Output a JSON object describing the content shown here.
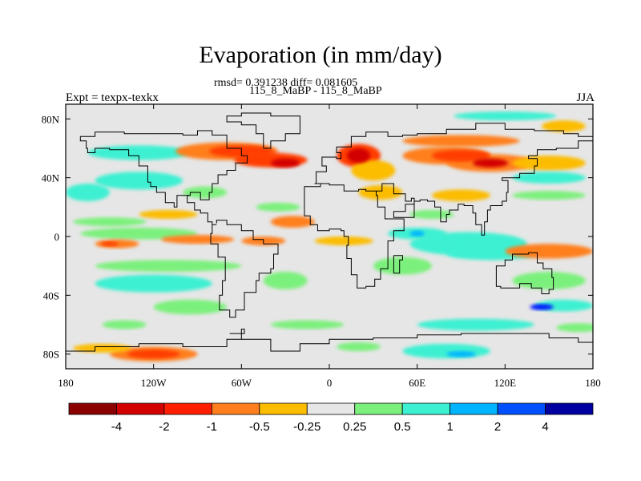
{
  "header": {
    "title": "Evaporation (in mm/day)",
    "stats": "rmsd= 0.391238 diff= 0.081605",
    "case": "115_8_MaBP - 115_8_MaBP",
    "expt": "Expt = texpx-texkx",
    "season": "JJA"
  },
  "map": {
    "lon_range": [
      -180,
      180
    ],
    "lat_range": [
      -90,
      90
    ],
    "background_color": "#e6e6e6",
    "lon_ticks": [
      {
        "value": -180,
        "label": "180"
      },
      {
        "value": -120,
        "label": "120W"
      },
      {
        "value": -60,
        "label": "60W"
      },
      {
        "value": 0,
        "label": "0"
      },
      {
        "value": 60,
        "label": "60E"
      },
      {
        "value": 120,
        "label": "120E"
      },
      {
        "value": 180,
        "label": "180"
      }
    ],
    "lat_ticks": [
      {
        "value": 80,
        "label": "80N"
      },
      {
        "value": 40,
        "label": "40N"
      },
      {
        "value": 0,
        "label": "0"
      },
      {
        "value": -40,
        "label": "40S"
      },
      {
        "value": -80,
        "label": "80S"
      }
    ],
    "fields": [
      {
        "lon": -130,
        "lat": 57,
        "rlon": 35,
        "rlat": 5,
        "color": "#3cf0d2"
      },
      {
        "lon": -165,
        "lat": 30,
        "rlon": 15,
        "rlat": 6,
        "color": "#3cf0d2"
      },
      {
        "lon": -130,
        "lat": 38,
        "rlon": 30,
        "rlat": 6,
        "color": "#3cf0d2"
      },
      {
        "lon": -110,
        "lat": 15,
        "rlon": 20,
        "rlat": 3,
        "color": "#fcbc00"
      },
      {
        "lon": -150,
        "lat": 10,
        "rlon": 25,
        "rlat": 3,
        "color": "#7cf07c"
      },
      {
        "lon": -130,
        "lat": 2,
        "rlon": 40,
        "rlat": 4,
        "color": "#7cf07c"
      },
      {
        "lon": -145,
        "lat": -5,
        "rlon": 15,
        "rlat": 3,
        "color": "#ff7f1e"
      },
      {
        "lon": -90,
        "lat": -2,
        "rlon": 25,
        "rlat": 3,
        "color": "#ff7f1e"
      },
      {
        "lon": -110,
        "lat": -20,
        "rlon": 50,
        "rlat": 4,
        "color": "#7cf07c"
      },
      {
        "lon": -120,
        "lat": -32,
        "rlon": 40,
        "rlat": 6,
        "color": "#3cf0d2"
      },
      {
        "lon": -95,
        "lat": -48,
        "rlon": 25,
        "rlat": 5,
        "color": "#7cf07c"
      },
      {
        "lon": -140,
        "lat": -60,
        "rlon": 15,
        "rlat": 3,
        "color": "#7cf07c"
      },
      {
        "lon": -120,
        "lat": -80,
        "rlon": 30,
        "rlat": 5,
        "color": "#ff7f1e"
      },
      {
        "lon": -155,
        "lat": -76,
        "rlon": 20,
        "rlat": 3,
        "color": "#fcbc00"
      },
      {
        "lon": -70,
        "lat": 58,
        "rlon": 35,
        "rlat": 6,
        "color": "#ff7f1e"
      },
      {
        "lon": -40,
        "lat": 52,
        "rlon": 25,
        "rlat": 5,
        "color": "#ff3c00"
      },
      {
        "lon": -85,
        "lat": 30,
        "rlon": 15,
        "rlat": 4,
        "color": "#7cf07c"
      },
      {
        "lon": -35,
        "lat": 20,
        "rlon": 15,
        "rlat": 3,
        "color": "#7cf07c"
      },
      {
        "lon": -25,
        "lat": 10,
        "rlon": 15,
        "rlat": 4,
        "color": "#ff7f1e"
      },
      {
        "lon": -45,
        "lat": -3,
        "rlon": 15,
        "rlat": 3,
        "color": "#ff7f1e"
      },
      {
        "lon": -30,
        "lat": -30,
        "rlon": 15,
        "rlat": 6,
        "color": "#7cf07c"
      },
      {
        "lon": -15,
        "lat": -60,
        "rlon": 25,
        "rlat": 3,
        "color": "#7cf07c"
      },
      {
        "lon": 20,
        "lat": 55,
        "rlon": 15,
        "rlat": 8,
        "color": "#ff3c00"
      },
      {
        "lon": 30,
        "lat": 45,
        "rlon": 15,
        "rlat": 7,
        "color": "#fcbc00"
      },
      {
        "lon": 35,
        "lat": 30,
        "rlon": 15,
        "rlat": 5,
        "color": "#fcbc00"
      },
      {
        "lon": 10,
        "lat": -3,
        "rlon": 20,
        "rlat": 3,
        "color": "#fcbc00"
      },
      {
        "lon": 60,
        "lat": 2,
        "rlon": 20,
        "rlat": 4,
        "color": "#3cf0d2"
      },
      {
        "lon": 50,
        "lat": -20,
        "rlon": 20,
        "rlat": 6,
        "color": "#7cf07c"
      },
      {
        "lon": 80,
        "lat": 55,
        "rlon": 30,
        "rlat": 6,
        "color": "#ff7f1e"
      },
      {
        "lon": 90,
        "lat": 65,
        "rlon": 40,
        "rlat": 4,
        "color": "#ff7f1e"
      },
      {
        "lon": 110,
        "lat": 50,
        "rlon": 30,
        "rlat": 6,
        "color": "#ff7f1e"
      },
      {
        "lon": 160,
        "lat": 75,
        "rlon": 15,
        "rlat": 4,
        "color": "#fcbc00"
      },
      {
        "lon": 150,
        "lat": 50,
        "rlon": 25,
        "rlat": 5,
        "color": "#fcbc00"
      },
      {
        "lon": 120,
        "lat": 82,
        "rlon": 35,
        "rlat": 3,
        "color": "#3cf0d2"
      },
      {
        "lon": 150,
        "lat": 40,
        "rlon": 25,
        "rlat": 4,
        "color": "#3cf0d2"
      },
      {
        "lon": 150,
        "lat": 28,
        "rlon": 25,
        "rlat": 3,
        "color": "#7cf07c"
      },
      {
        "lon": 90,
        "lat": 28,
        "rlon": 20,
        "rlat": 4,
        "color": "#fcbc00"
      },
      {
        "lon": 70,
        "lat": 15,
        "rlon": 15,
        "rlat": 3,
        "color": "#7cf07c"
      },
      {
        "lon": 95,
        "lat": -5,
        "rlon": 40,
        "rlat": 8,
        "color": "#3cf0d2"
      },
      {
        "lon": 110,
        "lat": -12,
        "rlon": 30,
        "rlat": 4,
        "color": "#3cf0d2"
      },
      {
        "lon": 150,
        "lat": -10,
        "rlon": 30,
        "rlat": 5,
        "color": "#ff7f1e"
      },
      {
        "lon": 150,
        "lat": -30,
        "rlon": 25,
        "rlat": 6,
        "color": "#7cf07c"
      },
      {
        "lon": 160,
        "lat": -47,
        "rlon": 20,
        "rlat": 4,
        "color": "#3cf0d2"
      },
      {
        "lon": 170,
        "lat": -62,
        "rlon": 15,
        "rlat": 3,
        "color": "#7cf07c"
      },
      {
        "lon": 100,
        "lat": -60,
        "rlon": 40,
        "rlat": 4,
        "color": "#3cf0d2"
      },
      {
        "lon": 80,
        "lat": -78,
        "rlon": 30,
        "rlat": 5,
        "color": "#3cf0d2"
      },
      {
        "lon": 20,
        "lat": -75,
        "rlon": 15,
        "rlat": 3,
        "color": "#7cf07c"
      }
    ],
    "hotspots": [
      {
        "lon": -120,
        "lat": -80,
        "rlon": 18,
        "rlat": 3,
        "color": "#ff3c00"
      },
      {
        "lon": -60,
        "lat": 58,
        "rlon": 22,
        "rlat": 4,
        "color": "#ff3c00"
      },
      {
        "lon": 20,
        "lat": 55,
        "rlon": 8,
        "rlat": 5,
        "color": "#d20000"
      },
      {
        "lon": 90,
        "lat": 55,
        "rlon": 20,
        "rlat": 4,
        "color": "#ff3c00"
      },
      {
        "lon": 110,
        "lat": 50,
        "rlon": 12,
        "rlat": 3,
        "color": "#d20000"
      },
      {
        "lon": -30,
        "lat": 50,
        "rlon": 10,
        "rlat": 3,
        "color": "#d20000"
      },
      {
        "lon": 145,
        "lat": -48,
        "rlon": 8,
        "rlat": 2,
        "color": "#0014ff"
      },
      {
        "lon": 90,
        "lat": -80,
        "rlon": 10,
        "rlat": 2,
        "color": "#00b4ff"
      },
      {
        "lon": 60,
        "lat": 2,
        "rlon": 5,
        "rlat": 2,
        "color": "#00b4ff"
      },
      {
        "lon": -150,
        "lat": -5,
        "rlon": 6,
        "rlat": 1.5,
        "color": "#ff3c00"
      }
    ],
    "coastlines": [
      [
        [
          -170,
          68
        ],
        [
          -160,
          71
        ],
        [
          -140,
          70
        ],
        [
          -120,
          70
        ],
        [
          -100,
          69
        ],
        [
          -90,
          72
        ],
        [
          -80,
          69
        ],
        [
          -70,
          60
        ],
        [
          -60,
          55
        ],
        [
          -56,
          50
        ],
        [
          -64,
          45
        ],
        [
          -70,
          42
        ],
        [
          -76,
          36
        ],
        [
          -80,
          30
        ],
        [
          -82,
          25
        ],
        [
          -88,
          30
        ],
        [
          -95,
          28
        ],
        [
          -97,
          23
        ],
        [
          -92,
          18
        ],
        [
          -88,
          16
        ],
        [
          -83,
          10
        ],
        [
          -80,
          8
        ],
        [
          -77,
          8
        ],
        [
          -80,
          2
        ],
        [
          -81,
          -5
        ],
        [
          -76,
          -14
        ],
        [
          -71,
          -20
        ],
        [
          -71,
          -30
        ],
        [
          -73,
          -40
        ],
        [
          -75,
          -50
        ],
        [
          -68,
          -55
        ],
        [
          -64,
          -50
        ],
        [
          -58,
          -38
        ],
        [
          -50,
          -30
        ],
        [
          -48,
          -25
        ],
        [
          -40,
          -22
        ],
        [
          -38,
          -12
        ],
        [
          -35,
          -5
        ],
        [
          -45,
          -2
        ],
        [
          -52,
          4
        ],
        [
          -60,
          8
        ],
        [
          -70,
          11
        ],
        [
          -77,
          9
        ]
      ],
      [
        [
          -95,
          28
        ],
        [
          -104,
          20
        ],
        [
          -106,
          23
        ],
        [
          -112,
          30
        ],
        [
          -118,
          34
        ],
        [
          -122,
          37
        ],
        [
          -124,
          42
        ],
        [
          -124,
          48
        ],
        [
          -130,
          55
        ],
        [
          -137,
          59
        ],
        [
          -150,
          60
        ],
        [
          -160,
          57
        ],
        [
          -165,
          60
        ],
        [
          -166,
          65
        ],
        [
          -170,
          68
        ]
      ],
      [
        [
          -10,
          36
        ],
        [
          -9,
          44
        ],
        [
          -2,
          48
        ],
        [
          -5,
          54
        ],
        [
          5,
          53
        ],
        [
          8,
          57
        ],
        [
          5,
          61
        ],
        [
          15,
          68
        ],
        [
          25,
          71
        ],
        [
          40,
          68
        ],
        [
          50,
          69
        ],
        [
          60,
          70
        ],
        [
          80,
          73
        ],
        [
          100,
          77
        ],
        [
          120,
          73
        ],
        [
          140,
          72
        ],
        [
          160,
          70
        ],
        [
          170,
          68
        ],
        [
          180,
          68
        ]
      ],
      [
        [
          -10,
          36
        ],
        [
          -6,
          34
        ],
        [
          -17,
          21
        ],
        [
          -17,
          14
        ],
        [
          -13,
          8
        ],
        [
          -8,
          4
        ],
        [
          0,
          5
        ],
        [
          8,
          4
        ],
        [
          10,
          0
        ],
        [
          13,
          -6
        ],
        [
          12,
          -15
        ],
        [
          15,
          -26
        ],
        [
          19,
          -35
        ],
        [
          25,
          -34
        ],
        [
          31,
          -29
        ],
        [
          35,
          -22
        ],
        [
          40,
          -15
        ],
        [
          40,
          -3
        ],
        [
          44,
          4
        ],
        [
          51,
          12
        ],
        [
          43,
          12
        ],
        [
          38,
          20
        ],
        [
          33,
          28
        ],
        [
          32,
          31
        ],
        [
          25,
          32
        ],
        [
          20,
          31
        ],
        [
          10,
          35
        ],
        [
          0,
          36
        ],
        [
          -10,
          36
        ]
      ],
      [
        [
          32,
          31
        ],
        [
          36,
          36
        ],
        [
          44,
          29
        ],
        [
          52,
          24
        ],
        [
          56,
          26
        ],
        [
          58,
          22
        ],
        [
          52,
          17
        ],
        [
          44,
          13
        ],
        [
          58,
          24
        ],
        [
          62,
          25
        ],
        [
          67,
          24
        ],
        [
          72,
          20
        ],
        [
          76,
          10
        ],
        [
          80,
          15
        ],
        [
          82,
          18
        ],
        [
          88,
          22
        ],
        [
          92,
          21
        ],
        [
          98,
          16
        ],
        [
          100,
          8
        ],
        [
          104,
          1
        ],
        [
          106,
          10
        ],
        [
          108,
          18
        ],
        [
          110,
          21
        ],
        [
          118,
          24
        ],
        [
          121,
          30
        ],
        [
          122,
          38
        ],
        [
          118,
          40
        ],
        [
          127,
          40
        ],
        [
          130,
          43
        ],
        [
          140,
          48
        ],
        [
          142,
          53
        ],
        [
          136,
          55
        ],
        [
          142,
          59
        ],
        [
          155,
          60
        ],
        [
          162,
          60
        ],
        [
          170,
          65
        ],
        [
          180,
          66
        ]
      ],
      [
        [
          114,
          -22
        ],
        [
          114,
          -34
        ],
        [
          117,
          -35
        ],
        [
          130,
          -32
        ],
        [
          138,
          -35
        ],
        [
          145,
          -39
        ],
        [
          150,
          -36
        ],
        [
          153,
          -28
        ],
        [
          152,
          -22
        ],
        [
          146,
          -18
        ],
        [
          142,
          -11
        ],
        [
          136,
          -12
        ],
        [
          130,
          -12
        ],
        [
          125,
          -16
        ],
        [
          120,
          -20
        ],
        [
          114,
          -22
        ]
      ],
      [
        [
          -45,
          60
        ],
        [
          -40,
          65
        ],
        [
          -30,
          70
        ],
        [
          -20,
          75
        ],
        [
          -20,
          82
        ],
        [
          -40,
          84
        ],
        [
          -60,
          82
        ],
        [
          -70,
          78
        ],
        [
          -60,
          76
        ],
        [
          -50,
          70
        ],
        [
          -45,
          60
        ]
      ],
      [
        [
          44,
          -13
        ],
        [
          50,
          -16
        ],
        [
          48,
          -25
        ],
        [
          44,
          -24
        ],
        [
          44,
          -13
        ]
      ],
      [
        [
          -68,
          -66
        ],
        [
          -58,
          -63
        ],
        [
          -60,
          -70
        ],
        [
          -70,
          -75
        ],
        [
          -100,
          -73
        ],
        [
          -130,
          -75
        ],
        [
          -160,
          -78
        ],
        [
          -170,
          -78
        ],
        [
          -180,
          -80
        ]
      ],
      [
        [
          -60,
          -70
        ],
        [
          -40,
          -78
        ],
        [
          -20,
          -73
        ],
        [
          0,
          -70
        ],
        [
          30,
          -69
        ],
        [
          60,
          -67
        ],
        [
          90,
          -66
        ],
        [
          120,
          -66
        ],
        [
          150,
          -69
        ],
        [
          170,
          -72
        ],
        [
          180,
          -78
        ]
      ]
    ]
  },
  "colorbar": {
    "colors": [
      "#8b0000",
      "#d20000",
      "#ff1e00",
      "#ff7f1e",
      "#fcbc00",
      "#e6e6e6",
      "#7cf07c",
      "#3cf0d2",
      "#00b4ff",
      "#0050ff",
      "#0000a0"
    ],
    "labels": [
      "-4",
      "-2",
      "-1",
      "-0.5",
      "-0.25",
      "0.25",
      "0.5",
      "1",
      "2",
      "4"
    ]
  }
}
